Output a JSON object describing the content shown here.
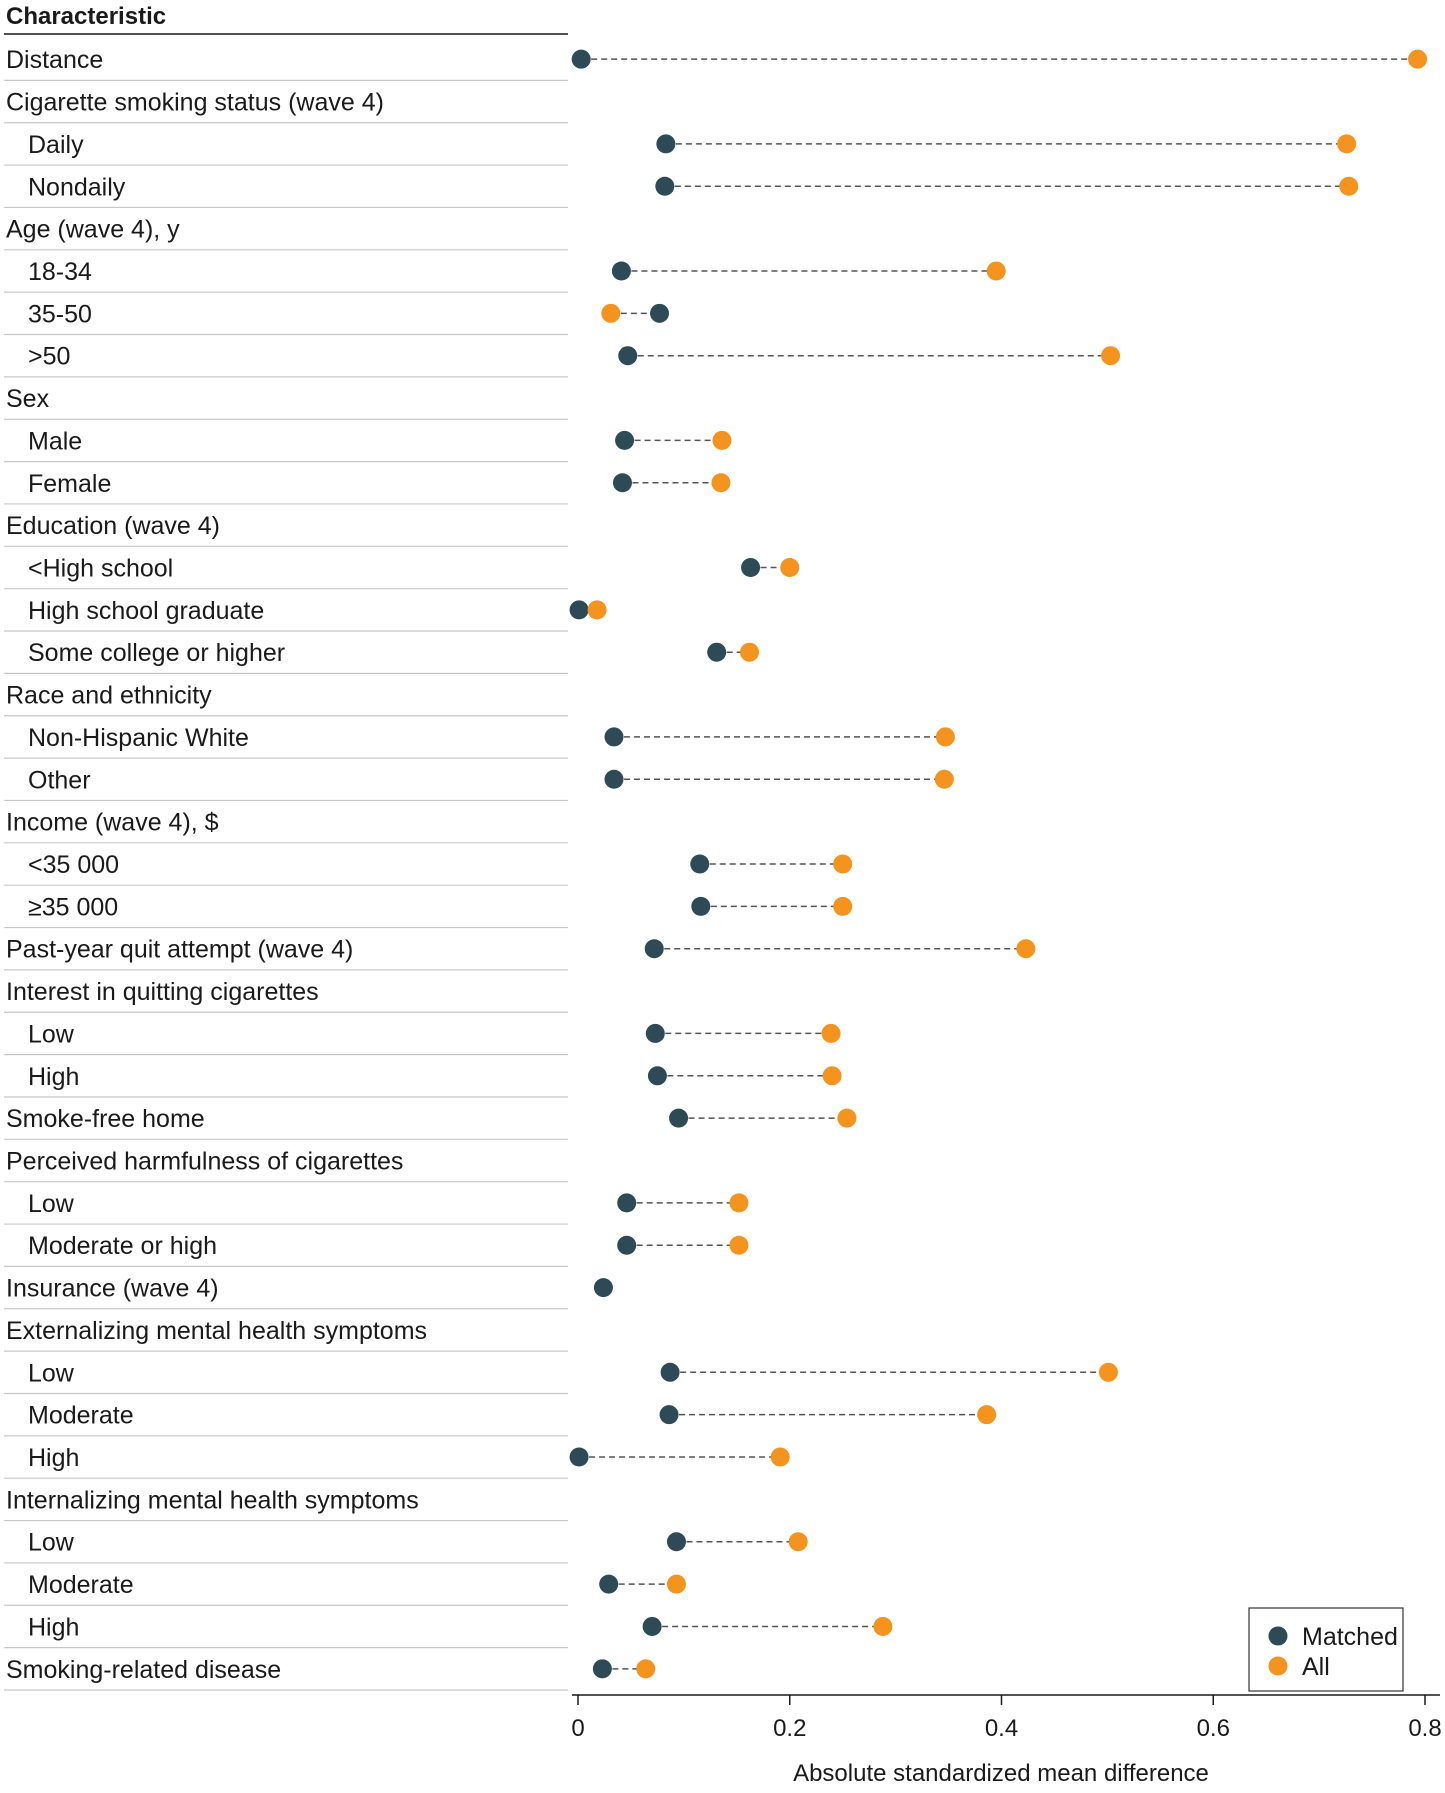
{
  "chart_data": {
    "type": "dot",
    "header": "Characteristic",
    "xlabel": "Absolute standardized mean difference",
    "xlim": [
      0,
      0.8
    ],
    "xticks": [
      "0",
      "0.2",
      "0.4",
      "0.6",
      "0.8"
    ],
    "legend_position": "bottom-right",
    "series": [
      {
        "key": "matched",
        "name": "Matched",
        "color": "#2e4a57"
      },
      {
        "key": "all",
        "name": "All",
        "color": "#f4931e"
      }
    ],
    "rows": [
      {
        "label": "Distance",
        "indent": 0,
        "matched": 0.003,
        "all": 0.793
      },
      {
        "label": "Cigarette smoking status (wave 4)",
        "indent": 0
      },
      {
        "label": "Daily",
        "indent": 1,
        "matched": 0.083,
        "all": 0.726
      },
      {
        "label": "Nondaily",
        "indent": 1,
        "matched": 0.082,
        "all": 0.728
      },
      {
        "label": "Age (wave 4), y",
        "indent": 0
      },
      {
        "label": "18-34",
        "indent": 1,
        "matched": 0.041,
        "all": 0.395
      },
      {
        "label": "35-50",
        "indent": 1,
        "matched": 0.077,
        "all": 0.031
      },
      {
        "label": ">50",
        "indent": 1,
        "matched": 0.047,
        "all": 0.503
      },
      {
        "label": "Sex",
        "indent": 0
      },
      {
        "label": "Male",
        "indent": 1,
        "matched": 0.044,
        "all": 0.136
      },
      {
        "label": "Female",
        "indent": 1,
        "matched": 0.042,
        "all": 0.135
      },
      {
        "label": "Education (wave 4)",
        "indent": 0
      },
      {
        "label": "<High school",
        "indent": 1,
        "matched": 0.163,
        "all": 0.2
      },
      {
        "label": "High school graduate",
        "indent": 1,
        "matched": 0.001,
        "all": 0.018
      },
      {
        "label": "Some college or higher",
        "indent": 1,
        "matched": 0.131,
        "all": 0.162
      },
      {
        "label": "Race and ethnicity",
        "indent": 0
      },
      {
        "label": "Non-Hispanic White",
        "indent": 1,
        "matched": 0.034,
        "all": 0.347
      },
      {
        "label": "Other",
        "indent": 1,
        "matched": 0.034,
        "all": 0.346
      },
      {
        "label": "Income (wave 4), $",
        "indent": 0
      },
      {
        "label": "<35 000",
        "indent": 1,
        "matched": 0.115,
        "all": 0.25
      },
      {
        "label": "≥35 000",
        "indent": 1,
        "matched": 0.116,
        "all": 0.25
      },
      {
        "label": "Past-year quit attempt (wave 4)",
        "indent": 0,
        "matched": 0.072,
        "all": 0.423
      },
      {
        "label": "Interest in quitting cigarettes",
        "indent": 0
      },
      {
        "label": "Low",
        "indent": 1,
        "matched": 0.073,
        "all": 0.239
      },
      {
        "label": "High",
        "indent": 1,
        "matched": 0.075,
        "all": 0.24
      },
      {
        "label": "Smoke-free home",
        "indent": 0,
        "matched": 0.095,
        "all": 0.254
      },
      {
        "label": "Perceived harmfulness of cigarettes",
        "indent": 0
      },
      {
        "label": "Low",
        "indent": 1,
        "matched": 0.046,
        "all": 0.152
      },
      {
        "label": "Moderate or high",
        "indent": 1,
        "matched": 0.046,
        "all": 0.152
      },
      {
        "label": "Insurance (wave 4)",
        "indent": 0,
        "matched": 0.024
      },
      {
        "label": "Externalizing mental health symptoms",
        "indent": 0
      },
      {
        "label": "Low",
        "indent": 1,
        "matched": 0.087,
        "all": 0.501
      },
      {
        "label": "Moderate",
        "indent": 1,
        "matched": 0.086,
        "all": 0.386
      },
      {
        "label": "High",
        "indent": 1,
        "matched": 0.001,
        "all": 0.191
      },
      {
        "label": "Internalizing mental health symptoms",
        "indent": 0
      },
      {
        "label": "Low",
        "indent": 1,
        "matched": 0.093,
        "all": 0.208
      },
      {
        "label": "Moderate",
        "indent": 1,
        "matched": 0.029,
        "all": 0.093
      },
      {
        "label": "High",
        "indent": 1,
        "matched": 0.07,
        "all": 0.288
      },
      {
        "label": "Smoking-related disease",
        "indent": 0,
        "matched": 0.023,
        "all": 0.064
      }
    ]
  }
}
